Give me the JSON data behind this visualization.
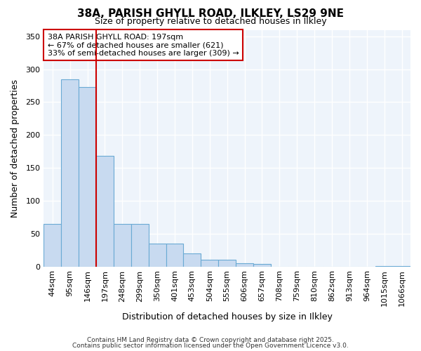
{
  "title_line1": "38A, PARISH GHYLL ROAD, ILKLEY, LS29 9NE",
  "title_line2": "Size of property relative to detached houses in Ilkley",
  "xlabel": "Distribution of detached houses by size in Ilkley",
  "ylabel": "Number of detached properties",
  "categories": [
    "44sqm",
    "95sqm",
    "146sqm",
    "197sqm",
    "248sqm",
    "299sqm",
    "350sqm",
    "401sqm",
    "453sqm",
    "504sqm",
    "555sqm",
    "606sqm",
    "657sqm",
    "708sqm",
    "759sqm",
    "810sqm",
    "862sqm",
    "913sqm",
    "964sqm",
    "1015sqm",
    "1066sqm"
  ],
  "values": [
    65,
    285,
    273,
    168,
    65,
    65,
    35,
    35,
    20,
    10,
    10,
    5,
    4,
    0,
    0,
    0,
    0,
    0,
    0,
    1,
    1
  ],
  "bar_color": "#c8daf0",
  "bar_edge_color": "#6aaad4",
  "plot_bg_color": "#eef4fb",
  "fig_bg_color": "#ffffff",
  "red_line_color": "#cc0000",
  "red_line_x": 2.5,
  "annotation_text_line1": "38A PARISH GHYLL ROAD: 197sqm",
  "annotation_text_line2": "← 67% of detached houses are smaller (621)",
  "annotation_text_line3": "33% of semi-detached houses are larger (309) →",
  "annotation_box_color": "#ffffff",
  "annotation_border_color": "#cc0000",
  "ylim": [
    0,
    360
  ],
  "yticks": [
    0,
    50,
    100,
    150,
    200,
    250,
    300,
    350
  ],
  "footer_line1": "Contains HM Land Registry data © Crown copyright and database right 2025.",
  "footer_line2": "Contains public sector information licensed under the Open Government Licence v3.0.",
  "title_fontsize": 11,
  "subtitle_fontsize": 9,
  "axis_label_fontsize": 9,
  "tick_fontsize": 8,
  "annotation_fontsize": 8,
  "footer_fontsize": 6.5
}
